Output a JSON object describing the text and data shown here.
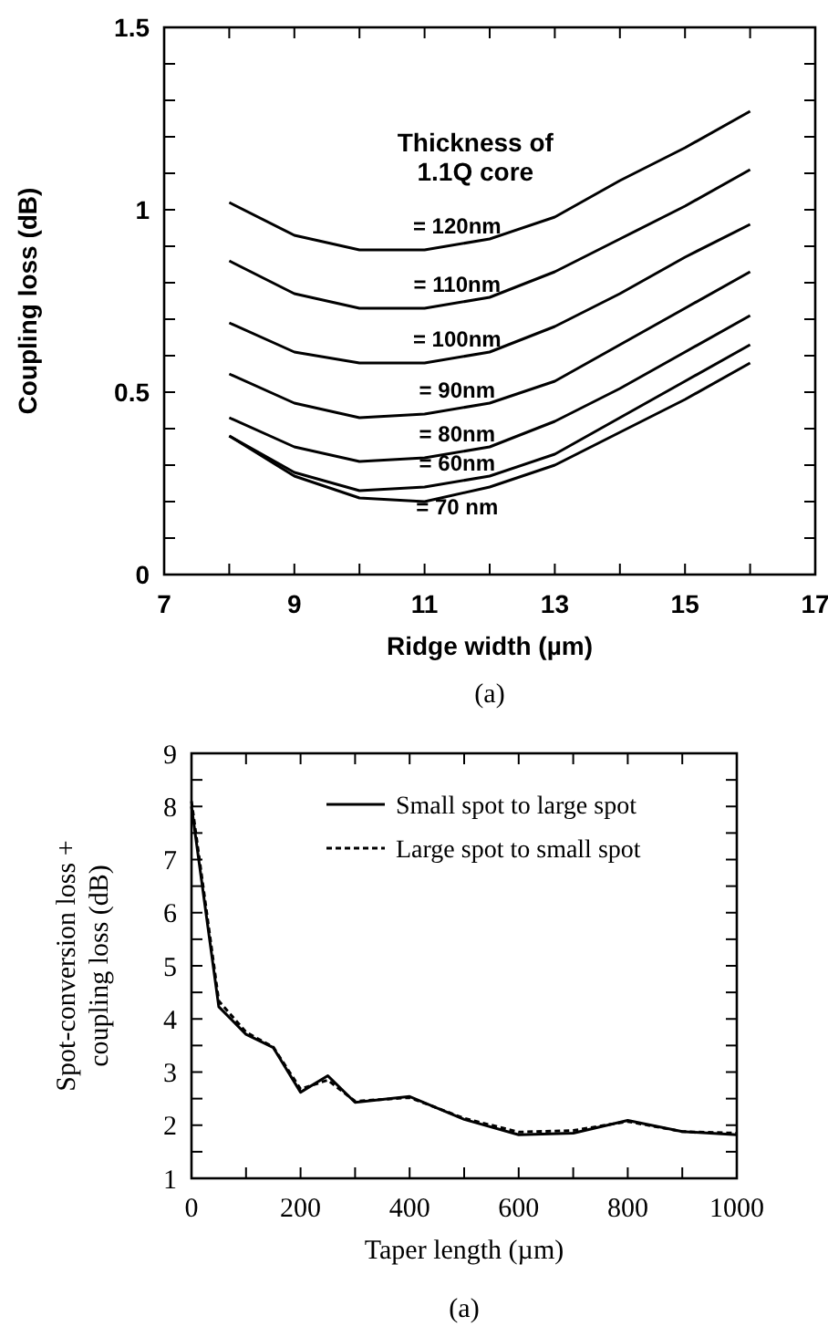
{
  "chart_data": [
    {
      "type": "line",
      "xlabel": "Ridge width (µm)",
      "ylabel": "Coupling loss (dB)",
      "legend_title": "Thickness of 1.1Q core",
      "annotations": [
        "(a)"
      ],
      "x": [
        8,
        9,
        10,
        11,
        12,
        13,
        14,
        15,
        16
      ],
      "xlim": [
        7,
        17
      ],
      "xticks": [
        7,
        {
          "value": 8,
          "label": null
        },
        9,
        {
          "value": 10,
          "label": null
        },
        11,
        {
          "value": 12,
          "label": null
        },
        13,
        {
          "value": 14,
          "label": null
        },
        15,
        {
          "value": 16,
          "label": null
        },
        17
      ],
      "ylim": [
        0,
        1.5
      ],
      "yticks": [
        0,
        {
          "value": 0.1,
          "label": null
        },
        {
          "value": 0.2,
          "label": null
        },
        {
          "value": 0.3,
          "label": null
        },
        {
          "value": 0.4,
          "label": null
        },
        0.5,
        {
          "value": 0.6,
          "label": null
        },
        {
          "value": 0.7,
          "label": null
        },
        {
          "value": 0.8,
          "label": null
        },
        {
          "value": 0.9,
          "label": null
        },
        1,
        {
          "value": 1.1,
          "label": null
        },
        {
          "value": 1.2,
          "label": null
        },
        {
          "value": 1.3,
          "label": null
        },
        {
          "value": 1.4,
          "label": null
        },
        1.5
      ],
      "grid": false,
      "series": [
        {
          "name": "= 120nm",
          "color": "#000000",
          "values": [
            1.02,
            0.93,
            0.89,
            0.89,
            0.92,
            0.98,
            1.08,
            1.17,
            1.27
          ]
        },
        {
          "name": "= 110nm",
          "color": "#000000",
          "values": [
            0.86,
            0.77,
            0.73,
            0.73,
            0.76,
            0.83,
            0.92,
            1.01,
            1.11
          ]
        },
        {
          "name": "= 100nm",
          "color": "#000000",
          "values": [
            0.69,
            0.61,
            0.58,
            0.58,
            0.61,
            0.68,
            0.77,
            0.87,
            0.96
          ]
        },
        {
          "name": "= 90nm",
          "color": "#000000",
          "values": [
            0.55,
            0.47,
            0.43,
            0.44,
            0.47,
            0.53,
            0.63,
            0.73,
            0.83
          ]
        },
        {
          "name": "= 80nm",
          "color": "#000000",
          "values": [
            0.43,
            0.35,
            0.31,
            0.32,
            0.35,
            0.42,
            0.51,
            0.61,
            0.71
          ]
        },
        {
          "name": "= 60nm",
          "color": "#000000",
          "values": [
            0.38,
            0.28,
            0.23,
            0.24,
            0.27,
            0.33,
            0.43,
            0.53,
            0.63
          ]
        },
        {
          "name": "= 70 nm",
          "color": "#000000",
          "values": [
            0.38,
            0.27,
            0.21,
            0.2,
            0.24,
            0.3,
            0.39,
            0.48,
            0.58
          ]
        }
      ]
    },
    {
      "type": "line",
      "xlabel": "Taper length (µm)",
      "ylabel": "Spot-conversion loss + coupling loss (dB)",
      "annotations": [
        "(a)"
      ],
      "x": [
        0,
        50,
        100,
        150,
        200,
        250,
        300,
        400,
        500,
        600,
        700,
        800,
        900,
        1000
      ],
      "xlim": [
        0,
        1000
      ],
      "xticks": [
        0,
        {
          "value": 100,
          "label": null
        },
        200,
        {
          "value": 300,
          "label": null
        },
        400,
        {
          "value": 500,
          "label": null
        },
        600,
        {
          "value": 700,
          "label": null
        },
        800,
        {
          "value": 900,
          "label": null
        },
        1000
      ],
      "ylim": [
        1,
        9
      ],
      "yticks": [
        1,
        {
          "value": 1.5,
          "label": null
        },
        2,
        {
          "value": 2.5,
          "label": null
        },
        3,
        {
          "value": 3.5,
          "label": null
        },
        4,
        {
          "value": 4.5,
          "label": null
        },
        5,
        {
          "value": 5.5,
          "label": null
        },
        6,
        {
          "value": 6.5,
          "label": null
        },
        7,
        {
          "value": 7.5,
          "label": null
        },
        8,
        {
          "value": 8.5,
          "label": null
        },
        9
      ],
      "grid": false,
      "legend": "top right",
      "series": [
        {
          "name": "Small spot to large spot",
          "color": "#000000",
          "line_style": "solid",
          "values": [
            8.0,
            4.23,
            3.71,
            3.46,
            2.62,
            2.93,
            2.43,
            2.54,
            2.11,
            1.82,
            1.85,
            2.09,
            1.88,
            1.82
          ]
        },
        {
          "name": "Large spot to small spot",
          "color": "#000000",
          "line_style": "dashed",
          "values": [
            8.1,
            4.34,
            3.75,
            3.47,
            2.68,
            2.85,
            2.45,
            2.52,
            2.13,
            1.87,
            1.9,
            2.07,
            1.88,
            1.85
          ]
        }
      ]
    }
  ]
}
